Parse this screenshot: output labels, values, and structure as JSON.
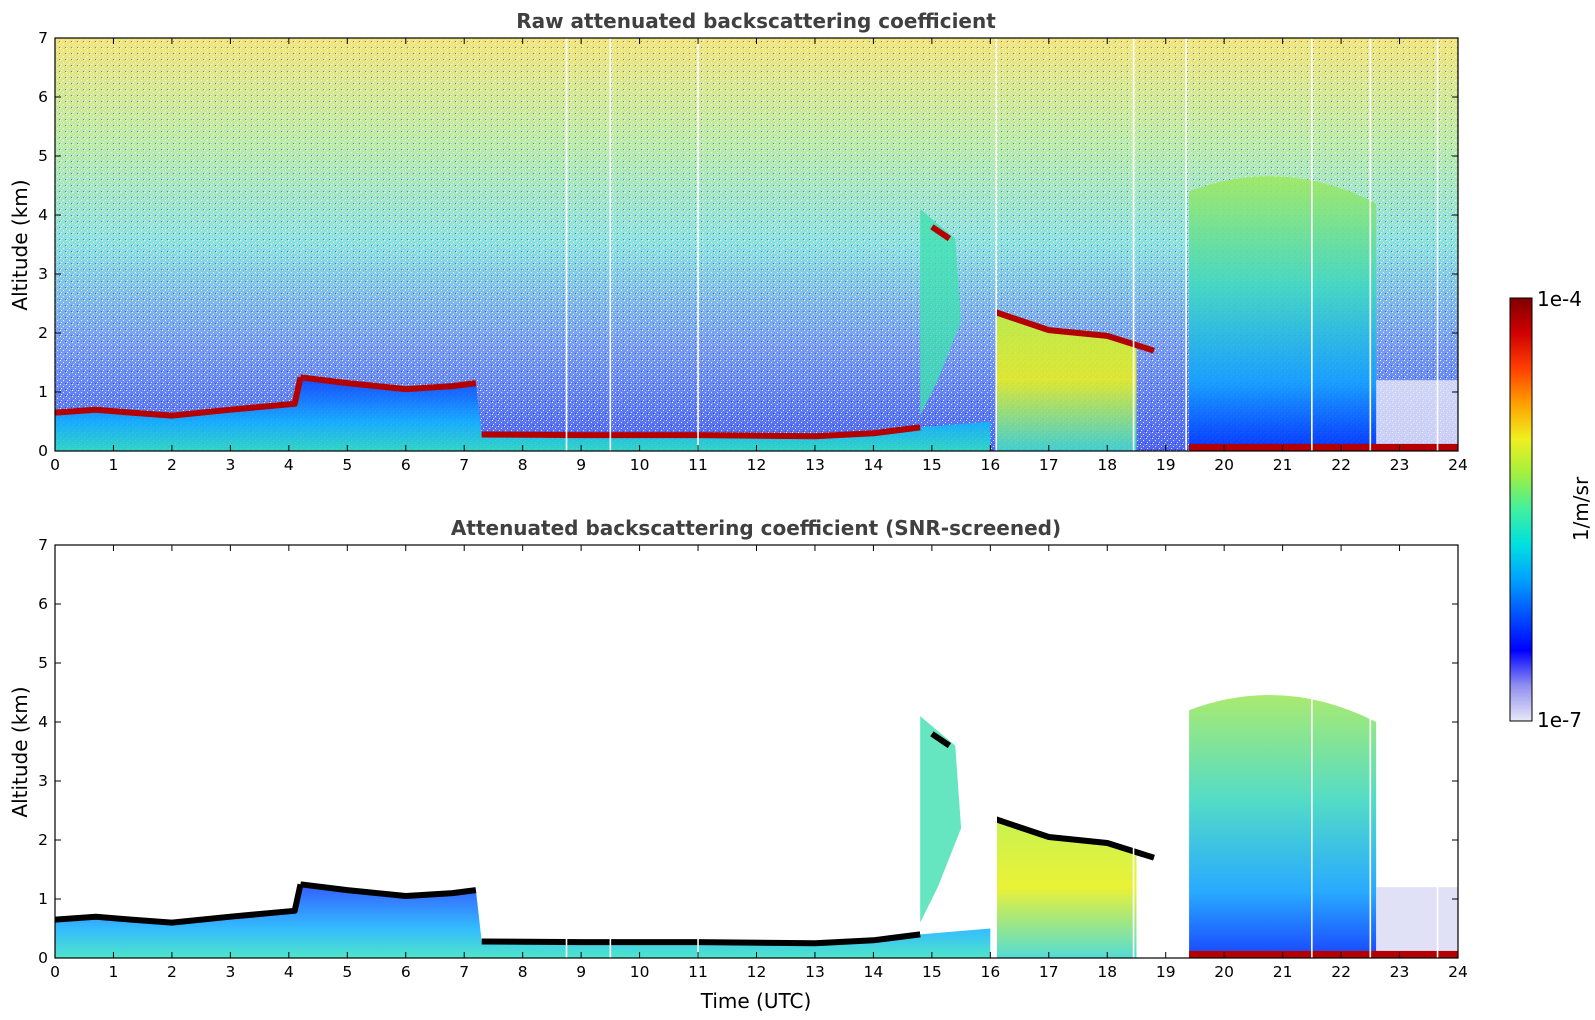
{
  "colors": {
    "cloud_layer": "#b40000",
    "boundary_layer": "#0a3cff",
    "screened_cloud": "#000000",
    "background": "#ffffff"
  },
  "colorbar": {
    "max_label": "1e-4",
    "min_label": "1e-7",
    "unit_label": "1/m/sr",
    "scale": "log",
    "range": [
      1e-07,
      0.0001
    ],
    "colormap": [
      "#e8e8f8",
      "#9090f0",
      "#0000ff",
      "#0050ff",
      "#00a0ff",
      "#00e0e0",
      "#40f0a0",
      "#a0f040",
      "#f0f020",
      "#ffa000",
      "#ff4000",
      "#d00000",
      "#800000"
    ]
  },
  "chart_data": [
    {
      "type": "heatmap",
      "title": "Raw attenuated backscattering coefficient",
      "xlabel": "",
      "ylabel": "Altitude (km)",
      "xlim": [
        0,
        24
      ],
      "ylim": [
        0,
        7
      ],
      "x_ticks": [
        "0",
        "1",
        "2",
        "3",
        "4",
        "5",
        "6",
        "7",
        "8",
        "9",
        "10",
        "11",
        "12",
        "13",
        "14",
        "15",
        "16",
        "17",
        "18",
        "19",
        "20",
        "21",
        "22",
        "23",
        "24"
      ],
      "y_ticks": [
        "0",
        "1",
        "2",
        "3",
        "4",
        "5",
        "6",
        "7"
      ],
      "cloud_layer_km": [
        [
          0,
          0.65
        ],
        [
          0.7,
          0.7
        ],
        [
          1.3,
          0.65
        ],
        [
          2,
          0.6
        ],
        [
          3,
          0.7
        ],
        [
          4.1,
          0.8
        ],
        [
          4.2,
          1.25
        ],
        [
          5,
          1.15
        ],
        [
          6,
          1.05
        ],
        [
          6.8,
          1.1
        ],
        [
          7.2,
          1.15
        ],
        [
          7.3,
          0.28
        ],
        [
          9,
          0.27
        ],
        [
          11,
          0.27
        ],
        [
          13,
          0.25
        ],
        [
          14,
          0.3
        ],
        [
          14.8,
          0.4
        ],
        [
          15,
          3.8
        ],
        [
          15.3,
          3.6
        ],
        [
          16.1,
          2.35
        ],
        [
          17,
          2.05
        ],
        [
          18,
          1.95
        ],
        [
          18.8,
          1.7
        ]
      ],
      "noise_top_km": 7
    },
    {
      "type": "heatmap",
      "title": "Attenuated backscattering coefficient (SNR-screened)",
      "xlabel": "Time (UTC)",
      "ylabel": "Altitude (km)",
      "xlim": [
        0,
        24
      ],
      "ylim": [
        0,
        7
      ],
      "x_ticks": [
        "0",
        "1",
        "2",
        "3",
        "4",
        "5",
        "6",
        "7",
        "8",
        "9",
        "10",
        "11",
        "12",
        "13",
        "14",
        "15",
        "16",
        "17",
        "18",
        "19",
        "20",
        "21",
        "22",
        "23",
        "24"
      ],
      "y_ticks": [
        "0",
        "1",
        "2",
        "3",
        "4",
        "5",
        "6",
        "7"
      ],
      "cloud_layer_km": [
        [
          0,
          0.65
        ],
        [
          0.7,
          0.7
        ],
        [
          1.3,
          0.65
        ],
        [
          2,
          0.6
        ],
        [
          3,
          0.7
        ],
        [
          4.1,
          0.8
        ],
        [
          4.2,
          1.25
        ],
        [
          5,
          1.15
        ],
        [
          6,
          1.05
        ],
        [
          6.8,
          1.1
        ],
        [
          7.2,
          1.15
        ],
        [
          7.3,
          0.28
        ],
        [
          9,
          0.27
        ],
        [
          11,
          0.27
        ],
        [
          13,
          0.25
        ],
        [
          14,
          0.3
        ],
        [
          14.8,
          0.4
        ],
        [
          15,
          3.8
        ],
        [
          15.3,
          3.6
        ],
        [
          16.1,
          2.35
        ],
        [
          17,
          2.05
        ],
        [
          18,
          1.95
        ],
        [
          18.8,
          1.7
        ]
      ],
      "aerosol_top_km": 4.8
    }
  ]
}
